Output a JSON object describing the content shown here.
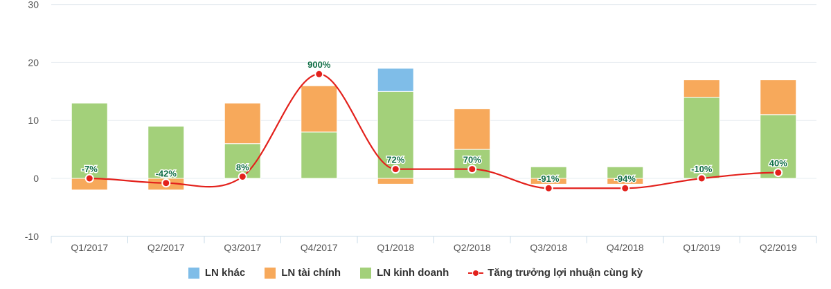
{
  "chart_data": {
    "type": "bar",
    "subtype": "stacked bar + line",
    "title": "",
    "xlabel": "",
    "ylabel": "",
    "ylim": [
      -10,
      30
    ],
    "yticks": [
      -10,
      0,
      10,
      20,
      30
    ],
    "grid": true,
    "legend_position": "bottom",
    "categories": [
      "Q1/2017",
      "Q2/2017",
      "Q3/2017",
      "Q4/2017",
      "Q1/2018",
      "Q2/2018",
      "Q3/2018",
      "Q4/2018",
      "Q1/2019",
      "Q2/2019"
    ],
    "series": [
      {
        "name": "LN khác",
        "type": "bar",
        "color": "#7fbde8",
        "values": [
          0,
          0,
          0,
          0,
          4,
          0,
          0,
          0,
          0,
          0
        ]
      },
      {
        "name": "LN tài chính",
        "type": "bar",
        "color": "#f7a95b",
        "values": [
          -2,
          -2,
          7,
          8,
          -1,
          7,
          -1,
          -1,
          3,
          6
        ]
      },
      {
        "name": "LN kinh doanh",
        "type": "bar",
        "color": "#a3d07a",
        "values": [
          13,
          9,
          6,
          8,
          15,
          5,
          2,
          2,
          14,
          11
        ]
      },
      {
        "name": "Tăng trưởng lợi nhuận cùng kỳ",
        "type": "line",
        "color": "#e3211c",
        "values": [
          -7,
          -42,
          8,
          900,
          72,
          70,
          -91,
          -94,
          -10,
          40
        ],
        "labels": [
          "-7%",
          "-42%",
          "8%",
          "900%",
          "72%",
          "70%",
          "-91%",
          "-94%",
          "-10%",
          "40%"
        ],
        "plot_y": [
          0,
          -0.8,
          0.3,
          18,
          1.6,
          1.6,
          -1.7,
          -1.7,
          0,
          1
        ]
      }
    ]
  },
  "legend": {
    "items": [
      {
        "label": "LN khác",
        "color": "#7fbde8"
      },
      {
        "label": "LN tài chính",
        "color": "#f7a95b"
      },
      {
        "label": "LN kinh doanh",
        "color": "#a3d07a"
      },
      {
        "label": "Tăng trưởng lợi nhuận cùng kỳ",
        "color": "#e3211c"
      }
    ]
  }
}
